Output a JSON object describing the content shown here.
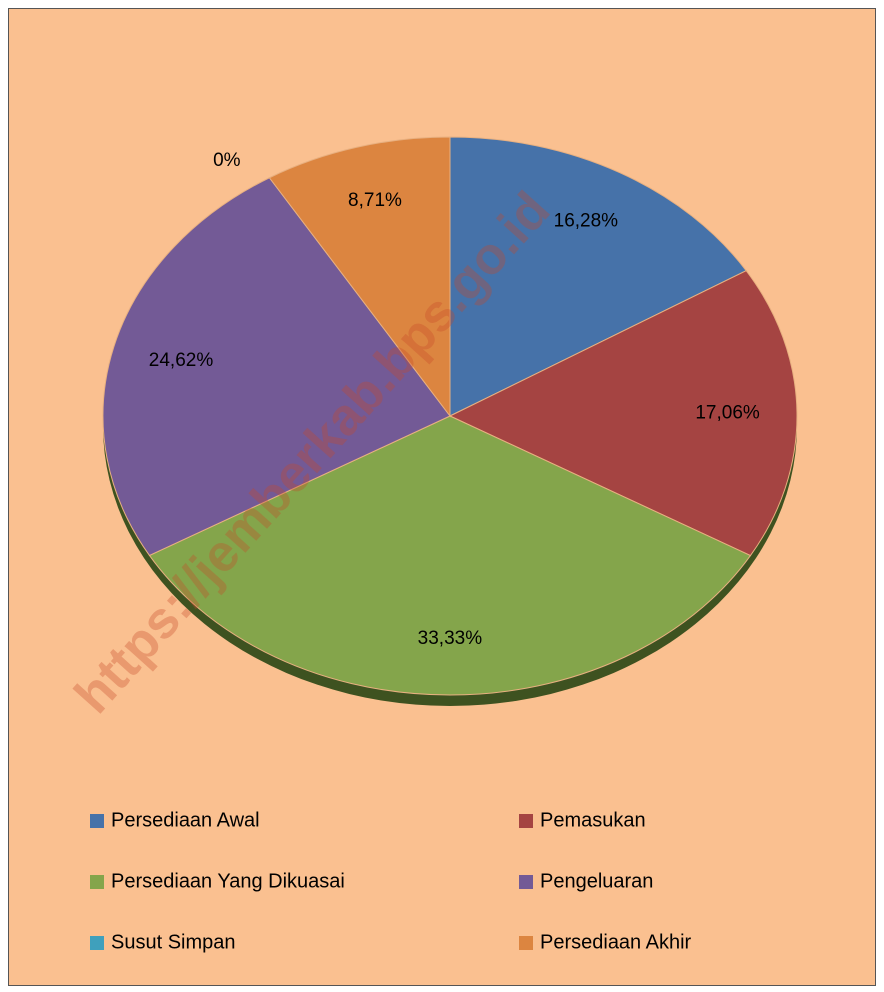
{
  "chart_data": {
    "type": "pie",
    "categories": [
      "Persediaan Awal",
      "Pemasukan",
      "Persediaan Yang Dikuasai",
      "Pengeluaran",
      "Susut Simpan",
      "Persediaan Akhir"
    ],
    "values": [
      16.28,
      17.06,
      33.33,
      24.62,
      0,
      8.71
    ],
    "value_labels": [
      "16,28%",
      "17,06%",
      "33,33%",
      "24,62%",
      "0%",
      "8,71%"
    ],
    "colors": [
      "#4672A9",
      "#A54442",
      "#84A54B",
      "#735A96",
      "#3FA0BC",
      "#DC8540"
    ],
    "legend": "bottom",
    "watermark": "https://jemberkab.bps.go.id"
  }
}
